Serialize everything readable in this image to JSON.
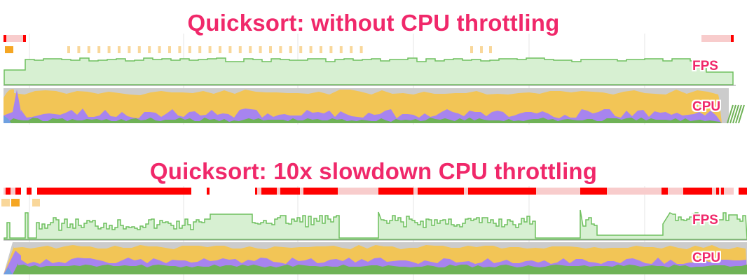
{
  "panels": [
    {
      "title": "Quicksort: without CPU throttling",
      "fps_label": "FPS",
      "cpu_label": "CPU"
    },
    {
      "title": "Quicksort: 10x slowdown CPU throttling",
      "fps_label": "FPS",
      "cpu_label": "CPU"
    }
  ],
  "colors": {
    "title": "#f0286a",
    "long_frame": "#ff0000",
    "long_frame_light": "#f8cccc",
    "fps_fill": "#d7f0d2",
    "fps_line": "#6fbf5e",
    "cpu_scripting": "#f2c556",
    "cpu_rendering": "#a784ef",
    "cpu_painting": "#6fb257",
    "cpu_idle": "#cccccc",
    "cpu_loading": "#6fa0e0",
    "marker": "#f5a623",
    "marker_light": "#f9d79a"
  }
}
